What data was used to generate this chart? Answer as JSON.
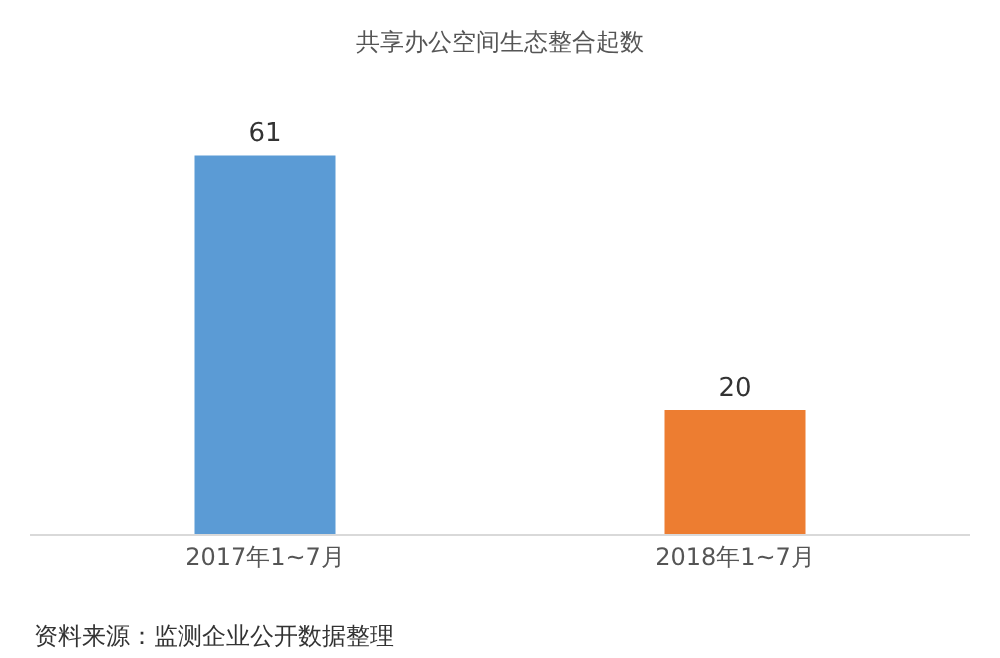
{
  "chart_data": {
    "type": "bar",
    "title": "共享办公空间生态整合起数",
    "categories": [
      "2017年1~7月",
      "2018年1~7月"
    ],
    "values": [
      61,
      20
    ],
    "colors": [
      "#5b9bd5",
      "#ed7d31"
    ],
    "data_labels": true,
    "annotations": [
      "资料来源：监测企业公开数据整理"
    ]
  }
}
